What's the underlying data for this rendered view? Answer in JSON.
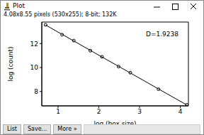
{
  "window": {
    "title": "Plot",
    "info": "4.08x8.55 pixels (530x255); 8-bit; 132K",
    "buttons": [
      "List",
      "Save...",
      "More »"
    ]
  },
  "chart_data": {
    "type": "scatter",
    "x_label": "log (box size)",
    "y_label": "log (count)",
    "annotation": "D=1.9238",
    "x": [
      0.693,
      1.099,
      1.386,
      1.792,
      2.079,
      2.485,
      2.773,
      3.466,
      4.159
    ],
    "series": [
      {
        "type": "scatter",
        "color": "#000000",
        "marker": "circle",
        "values": [
          13.57,
          12.74,
          12.25,
          11.41,
          10.9,
          10.08,
          9.57,
          8.19,
          6.89
        ]
      },
      {
        "type": "line",
        "color": "#000000",
        "line_style": "solid",
        "values": [
          13.55,
          12.77,
          12.22,
          11.43,
          10.88,
          10.1,
          9.55,
          8.21,
          6.88
        ]
      }
    ],
    "xlim": [
      0.6,
      4.2
    ],
    "ylim": [
      6.8,
      13.8
    ],
    "xticks": [
      1,
      2,
      3,
      4
    ],
    "yticks": [
      8,
      10,
      12
    ],
    "grid": false
  }
}
